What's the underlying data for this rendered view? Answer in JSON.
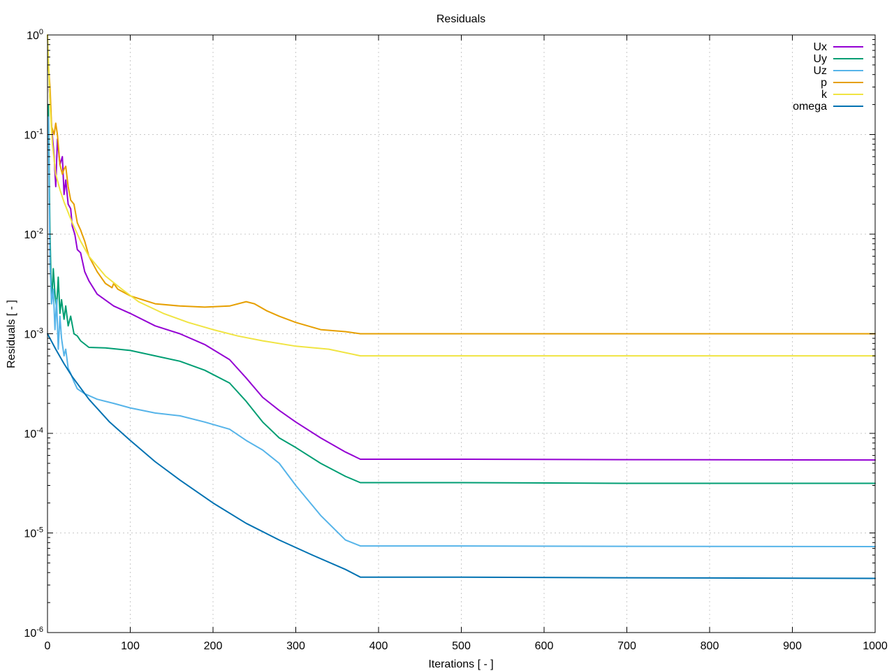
{
  "chart_data": {
    "type": "line",
    "title": "Residuals",
    "xlabel": "Iterations [ - ]",
    "ylabel": "Residuals [ - ]",
    "xlim": [
      0,
      1000
    ],
    "ylim": [
      1e-06,
      1
    ],
    "yscale": "log",
    "grid": true,
    "legend_position": "top-right",
    "x_ticks": [
      "0",
      "100",
      "200",
      "300",
      "400",
      "500",
      "600",
      "700",
      "800",
      "900",
      "1000"
    ],
    "y_ticks": [
      {
        "base": "10",
        "exp": "0"
      },
      {
        "base": "10",
        "exp": "-1"
      },
      {
        "base": "10",
        "exp": "-2"
      },
      {
        "base": "10",
        "exp": "-3"
      },
      {
        "base": "10",
        "exp": "-4"
      },
      {
        "base": "10",
        "exp": "-5"
      },
      {
        "base": "10",
        "exp": "-6"
      }
    ],
    "series": [
      {
        "name": "Ux",
        "color": "#9400d3",
        "points": [
          [
            2,
            0.3
          ],
          [
            5,
            0.12
          ],
          [
            8,
            0.06
          ],
          [
            10,
            0.03
          ],
          [
            12,
            0.09
          ],
          [
            15,
            0.05
          ],
          [
            18,
            0.06
          ],
          [
            20,
            0.025
          ],
          [
            22,
            0.035
          ],
          [
            25,
            0.02
          ],
          [
            28,
            0.018
          ],
          [
            30,
            0.012
          ],
          [
            33,
            0.01
          ],
          [
            36,
            0.007
          ],
          [
            40,
            0.0065
          ],
          [
            45,
            0.0042
          ],
          [
            50,
            0.0034
          ],
          [
            60,
            0.0025
          ],
          [
            80,
            0.0019
          ],
          [
            100,
            0.0016
          ],
          [
            130,
            0.0012
          ],
          [
            160,
            0.001
          ],
          [
            190,
            0.00078
          ],
          [
            220,
            0.00055
          ],
          [
            240,
            0.00036
          ],
          [
            260,
            0.00023
          ],
          [
            280,
            0.00017
          ],
          [
            300,
            0.00013
          ],
          [
            330,
            9e-05
          ],
          [
            360,
            6.5e-05
          ],
          [
            378,
            5.5e-05
          ],
          [
            500,
            5.5e-05
          ],
          [
            700,
            5.45e-05
          ],
          [
            1000,
            5.4e-05
          ]
        ]
      },
      {
        "name": "Uy",
        "color": "#009e73",
        "points": [
          [
            1,
            0.2
          ],
          [
            3,
            0.01
          ],
          [
            5,
            0.002
          ],
          [
            7,
            0.0045
          ],
          [
            9,
            0.0025
          ],
          [
            11,
            0.0018
          ],
          [
            13,
            0.0037
          ],
          [
            15,
            0.0016
          ],
          [
            17,
            0.0022
          ],
          [
            20,
            0.0014
          ],
          [
            22,
            0.0019
          ],
          [
            25,
            0.0012
          ],
          [
            28,
            0.0015
          ],
          [
            32,
            0.001
          ],
          [
            36,
            0.00095
          ],
          [
            40,
            0.00085
          ],
          [
            50,
            0.00073
          ],
          [
            70,
            0.00072
          ],
          [
            100,
            0.00068
          ],
          [
            130,
            0.0006
          ],
          [
            160,
            0.00053
          ],
          [
            190,
            0.00043
          ],
          [
            220,
            0.00032
          ],
          [
            240,
            0.00021
          ],
          [
            260,
            0.00013
          ],
          [
            280,
            9e-05
          ],
          [
            300,
            7.2e-05
          ],
          [
            330,
            5e-05
          ],
          [
            360,
            3.7e-05
          ],
          [
            378,
            3.2e-05
          ],
          [
            500,
            3.2e-05
          ],
          [
            700,
            3.15e-05
          ],
          [
            1000,
            3.15e-05
          ]
        ]
      },
      {
        "name": "Uz",
        "color": "#56b4e9",
        "points": [
          [
            1,
            0.15
          ],
          [
            3,
            0.005
          ],
          [
            5,
            0.002
          ],
          [
            7,
            0.0028
          ],
          [
            9,
            0.0011
          ],
          [
            11,
            0.0022
          ],
          [
            13,
            0.0007
          ],
          [
            15,
            0.0015
          ],
          [
            17,
            0.0009
          ],
          [
            20,
            0.0006
          ],
          [
            22,
            0.0007
          ],
          [
            25,
            0.00045
          ],
          [
            28,
            0.0004
          ],
          [
            32,
            0.00033
          ],
          [
            36,
            0.00028
          ],
          [
            45,
            0.00025
          ],
          [
            60,
            0.00022
          ],
          [
            80,
            0.0002
          ],
          [
            100,
            0.00018
          ],
          [
            130,
            0.00016
          ],
          [
            160,
            0.00015
          ],
          [
            190,
            0.00013
          ],
          [
            220,
            0.00011
          ],
          [
            240,
            8.5e-05
          ],
          [
            260,
            6.8e-05
          ],
          [
            280,
            5e-05
          ],
          [
            300,
            3e-05
          ],
          [
            330,
            1.5e-05
          ],
          [
            360,
            8.5e-06
          ],
          [
            378,
            7.4e-06
          ],
          [
            500,
            7.4e-06
          ],
          [
            700,
            7.35e-06
          ],
          [
            1000,
            7.3e-06
          ]
        ]
      },
      {
        "name": "p",
        "color": "#e69f00",
        "points": [
          [
            1,
            0.5
          ],
          [
            3,
            0.3
          ],
          [
            5,
            0.12
          ],
          [
            8,
            0.1
          ],
          [
            10,
            0.13
          ],
          [
            12,
            0.1
          ],
          [
            15,
            0.05
          ],
          [
            18,
            0.04
          ],
          [
            20,
            0.045
          ],
          [
            22,
            0.048
          ],
          [
            25,
            0.03
          ],
          [
            28,
            0.022
          ],
          [
            32,
            0.02
          ],
          [
            36,
            0.013
          ],
          [
            40,
            0.011
          ],
          [
            45,
            0.0085
          ],
          [
            50,
            0.006
          ],
          [
            60,
            0.0042
          ],
          [
            70,
            0.0032
          ],
          [
            78,
            0.0029
          ],
          [
            80,
            0.0032
          ],
          [
            85,
            0.0028
          ],
          [
            100,
            0.0024
          ],
          [
            130,
            0.002
          ],
          [
            160,
            0.0019
          ],
          [
            190,
            0.00185
          ],
          [
            220,
            0.0019
          ],
          [
            240,
            0.0021
          ],
          [
            250,
            0.002
          ],
          [
            265,
            0.0017
          ],
          [
            280,
            0.0015
          ],
          [
            300,
            0.0013
          ],
          [
            330,
            0.0011
          ],
          [
            360,
            0.00105
          ],
          [
            378,
            0.001
          ],
          [
            500,
            0.001
          ],
          [
            700,
            0.001
          ],
          [
            1000,
            0.001
          ]
        ]
      },
      {
        "name": "k",
        "color": "#f0e442",
        "points": [
          [
            0,
            1
          ],
          [
            3,
            0.2
          ],
          [
            6,
            0.08
          ],
          [
            10,
            0.04
          ],
          [
            15,
            0.028
          ],
          [
            20,
            0.021
          ],
          [
            30,
            0.013
          ],
          [
            40,
            0.0085
          ],
          [
            50,
            0.006
          ],
          [
            70,
            0.0038
          ],
          [
            90,
            0.0028
          ],
          [
            110,
            0.0021
          ],
          [
            140,
            0.0016
          ],
          [
            170,
            0.0013
          ],
          [
            200,
            0.0011
          ],
          [
            230,
            0.00095
          ],
          [
            260,
            0.00085
          ],
          [
            300,
            0.00075
          ],
          [
            340,
            0.0007
          ],
          [
            378,
            0.0006
          ],
          [
            500,
            0.0006
          ],
          [
            700,
            0.0006
          ],
          [
            1000,
            0.0006
          ]
        ]
      },
      {
        "name": "omega",
        "color": "#0072b2",
        "points": [
          [
            0,
            0.001
          ],
          [
            10,
            0.0007
          ],
          [
            20,
            0.0005
          ],
          [
            30,
            0.00037
          ],
          [
            50,
            0.00022
          ],
          [
            75,
            0.00013
          ],
          [
            100,
            8.5e-05
          ],
          [
            130,
            5.2e-05
          ],
          [
            160,
            3.4e-05
          ],
          [
            200,
            2e-05
          ],
          [
            240,
            1.25e-05
          ],
          [
            280,
            8.5e-06
          ],
          [
            320,
            6e-06
          ],
          [
            360,
            4.3e-06
          ],
          [
            378,
            3.6e-06
          ],
          [
            500,
            3.6e-06
          ],
          [
            700,
            3.55e-06
          ],
          [
            1000,
            3.5e-06
          ]
        ]
      }
    ]
  }
}
